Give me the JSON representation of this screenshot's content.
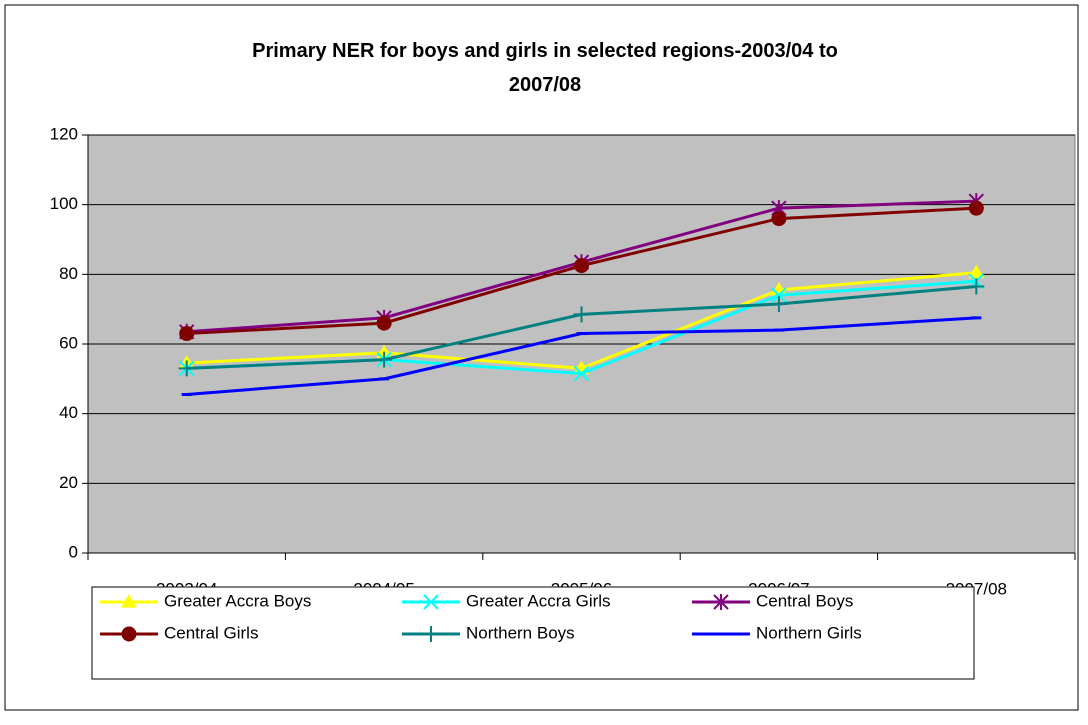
{
  "chart_data": {
    "type": "line",
    "title": "Primary NER for boys and girls in selected regions-2003/04 to 2007/08",
    "categories": [
      "2003/04",
      "2004/05",
      "2005/06",
      "2006/07",
      "2007/08"
    ],
    "series": [
      {
        "name": "Greater Accra Boys",
        "color": "#ffff00",
        "marker": "triangle",
        "values": [
          54.5,
          57.5,
          53,
          75.5,
          80.5
        ]
      },
      {
        "name": "Greater Accra Girls",
        "color": "#00ffff",
        "marker": "x",
        "values": [
          53,
          55.5,
          51.5,
          74,
          78
        ]
      },
      {
        "name": "Central Boys",
        "color": "#800080",
        "marker": "asterisk",
        "values": [
          63.5,
          67.5,
          83.5,
          99,
          101
        ]
      },
      {
        "name": "Central Girls",
        "color": "#800000",
        "marker": "circle",
        "values": [
          63,
          66,
          82.5,
          96,
          99
        ]
      },
      {
        "name": "Northern Boys",
        "color": "#008080",
        "marker": "plus",
        "values": [
          53,
          55.5,
          68.5,
          71.5,
          76.5
        ]
      },
      {
        "name": "Northern Girls",
        "color": "#0000ff",
        "marker": "dash",
        "values": [
          45.5,
          50,
          63,
          64,
          67.5
        ]
      }
    ],
    "ylim": [
      0,
      120
    ],
    "yticks": [
      0,
      20,
      40,
      60,
      80,
      100,
      120
    ],
    "grid": true,
    "plot_background": "#c0c0c0"
  }
}
